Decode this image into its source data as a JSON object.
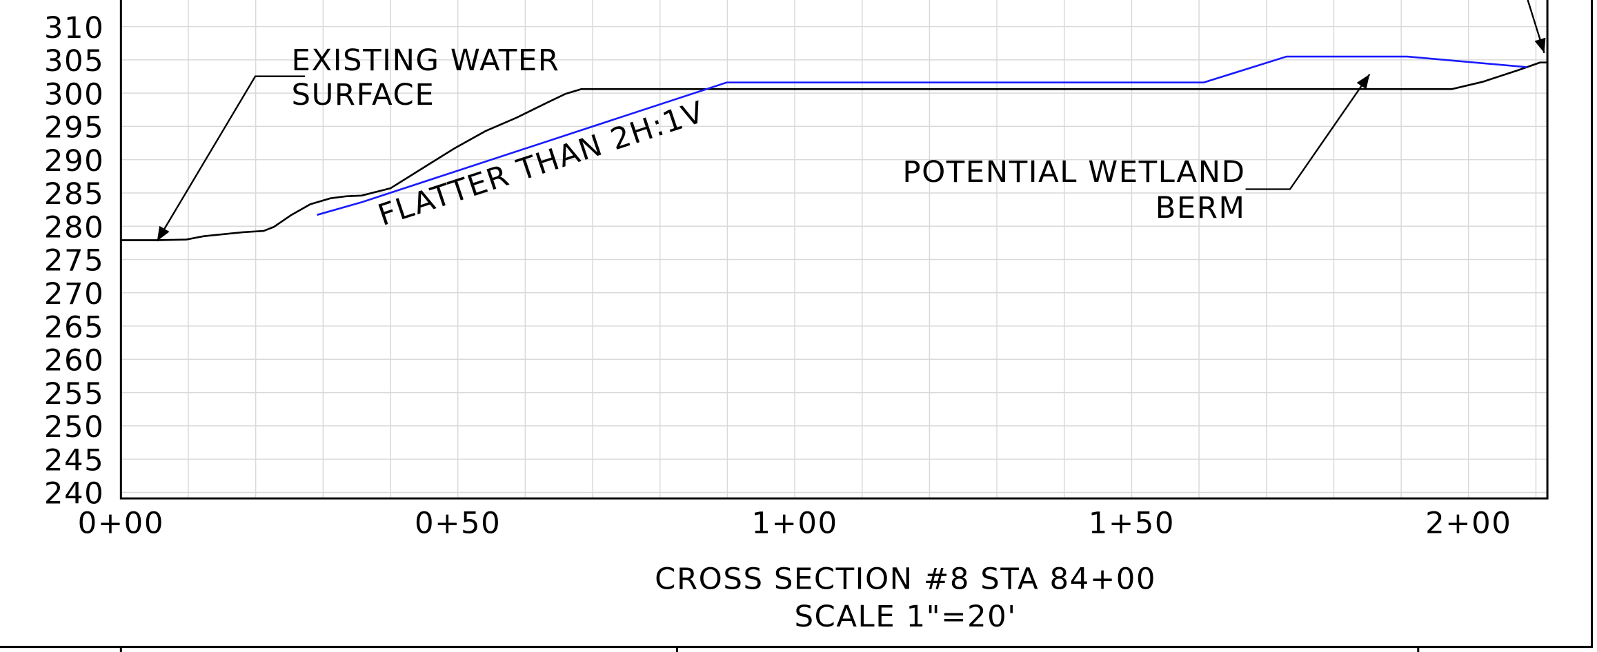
{
  "chart_data": {
    "type": "line",
    "title": "CROSS SECTION #8 STA 84+00",
    "subtitle": "SCALE 1\"=20'",
    "annotations": [
      {
        "lines": [
          "EXISTING WATER",
          "SURFACE"
        ]
      },
      {
        "lines": [
          "FLATTER THAN 2H:1V"
        ]
      },
      {
        "lines": [
          "POTENTIAL WETLAND",
          "BERM"
        ]
      }
    ],
    "xlim": [
      0,
      211.7
    ],
    "ylim": [
      239.1,
      314.3
    ],
    "xticks": [
      {
        "value": 0,
        "label": "0+00"
      },
      {
        "value": 50,
        "label": "0+50"
      },
      {
        "value": 100,
        "label": "1+00"
      },
      {
        "value": 150,
        "label": "1+50"
      },
      {
        "value": 200,
        "label": "2+00"
      }
    ],
    "x_minor_ticks": [
      10,
      20,
      30,
      40,
      60,
      70,
      80,
      90,
      110,
      120,
      130,
      140,
      160,
      170,
      180,
      190,
      210
    ],
    "yticks": [
      240,
      245,
      250,
      255,
      260,
      265,
      270,
      275,
      280,
      285,
      290,
      295,
      300,
      305,
      310
    ],
    "grid": true,
    "series": [
      {
        "color": "#000000",
        "x": [
          0,
          5.4,
          9.7,
          12.3,
          18.1,
          21.2,
          22.7,
          25.3,
          28.1,
          31.1,
          33.4,
          35.7,
          40.0,
          44.9,
          49.5,
          54.1,
          58.7,
          63.3,
          66.0,
          68.3,
          197.5,
          202.1,
          207.5,
          210.6,
          211.7
        ],
        "values": [
          277.9,
          277.9,
          278.0,
          278.5,
          279.1,
          279.3,
          279.9,
          281.7,
          283.3,
          284.2,
          284.5,
          284.6,
          285.7,
          288.8,
          291.7,
          294.3,
          296.3,
          298.6,
          299.9,
          300.6,
          300.6,
          301.7,
          303.5,
          304.6,
          304.6
        ]
      },
      {
        "color": "#1a1aff",
        "x": [
          29.1,
          35.7,
          89.9,
          160.7,
          173.0,
          190.9,
          208.7
        ],
        "values": [
          281.7,
          283.6,
          301.6,
          301.6,
          305.5,
          305.5,
          303.9
        ]
      }
    ]
  }
}
